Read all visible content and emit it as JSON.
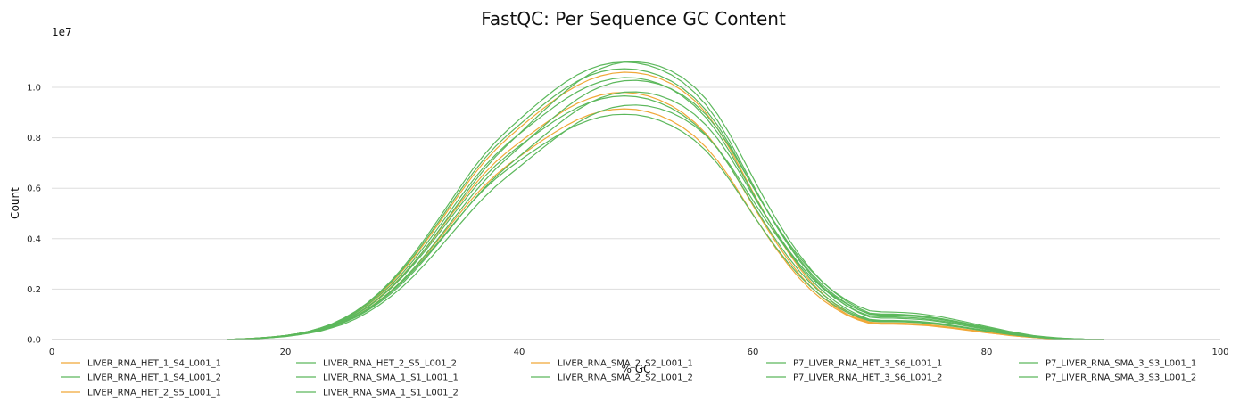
{
  "chart_data": {
    "type": "line",
    "title": "FastQC: Per Sequence GC Content",
    "xlabel": "% GC",
    "ylabel": "Count",
    "y_multiplier": "1e7",
    "xlim": [
      0,
      100
    ],
    "ylim": [
      0,
      1.2
    ],
    "x_ticks": [
      "0",
      "20",
      "40",
      "60",
      "80",
      "100"
    ],
    "y_ticks": [
      "0.0",
      "0.2",
      "0.4",
      "0.6",
      "0.8",
      "1.0"
    ],
    "grid": "horizontal",
    "legend_position": "bottom",
    "colors": {
      "warn": "#f0a838",
      "pass": "#5cb85c"
    },
    "x": [
      15,
      16,
      17,
      18,
      19,
      20,
      21,
      22,
      23,
      24,
      25,
      26,
      27,
      28,
      29,
      30,
      31,
      32,
      33,
      34,
      35,
      36,
      37,
      38,
      39,
      40,
      41,
      42,
      43,
      44,
      45,
      46,
      47,
      48,
      49,
      50,
      51,
      52,
      53,
      54,
      55,
      56,
      57,
      58,
      59,
      60,
      61,
      62,
      63,
      64,
      65,
      66,
      67,
      68,
      69,
      70,
      71,
      72,
      73,
      74,
      75,
      76,
      77,
      78,
      79,
      80,
      81,
      82,
      83,
      84,
      85,
      86,
      87,
      88,
      89,
      90
    ],
    "series": [
      {
        "name": "LIVER_RNA_HET_1_S4_L001_1",
        "status": "warn",
        "values": [
          0,
          0.002,
          0.004,
          0.007,
          0.011,
          0.016,
          0.023,
          0.032,
          0.045,
          0.061,
          0.082,
          0.108,
          0.14,
          0.178,
          0.222,
          0.272,
          0.327,
          0.388,
          0.452,
          0.518,
          0.584,
          0.647,
          0.704,
          0.754,
          0.798,
          0.838,
          0.877,
          0.914,
          0.949,
          0.981,
          1.008,
          1.03,
          1.046,
          1.056,
          1.06,
          1.058,
          1.05,
          1.036,
          1.015,
          0.986,
          0.948,
          0.898,
          0.835,
          0.758,
          0.672,
          0.585,
          0.501,
          0.421,
          0.347,
          0.282,
          0.227,
          0.18,
          0.141,
          0.11,
          0.086,
          0.069,
          0.066,
          0.066,
          0.065,
          0.063,
          0.059,
          0.054,
          0.048,
          0.042,
          0.036,
          0.03,
          0.024,
          0.018,
          0.013,
          0.009,
          0.006,
          0.004,
          0.002,
          0.001,
          0,
          0
        ]
      },
      {
        "name": "LIVER_RNA_HET_1_S4_L001_2",
        "status": "pass",
        "values": [
          0,
          0.002,
          0.004,
          0.007,
          0.011,
          0.016,
          0.023,
          0.032,
          0.044,
          0.06,
          0.08,
          0.105,
          0.136,
          0.173,
          0.215,
          0.263,
          0.317,
          0.376,
          0.439,
          0.503,
          0.567,
          0.629,
          0.685,
          0.734,
          0.777,
          0.815,
          0.852,
          0.888,
          0.923,
          0.955,
          0.983,
          1.006,
          1.023,
          1.034,
          1.039,
          1.037,
          1.029,
          1.014,
          0.993,
          0.964,
          0.927,
          0.879,
          0.819,
          0.746,
          0.664,
          0.581,
          0.5,
          0.423,
          0.352,
          0.289,
          0.236,
          0.191,
          0.153,
          0.122,
          0.098,
          0.08,
          0.076,
          0.076,
          0.075,
          0.073,
          0.069,
          0.064,
          0.057,
          0.05,
          0.043,
          0.036,
          0.029,
          0.022,
          0.016,
          0.011,
          0.007,
          0.005,
          0.003,
          0.001,
          0,
          0
        ]
      },
      {
        "name": "LIVER_RNA_HET_2_S5_L001_1",
        "status": "warn",
        "values": [
          0,
          0.002,
          0.004,
          0.007,
          0.01,
          0.015,
          0.021,
          0.03,
          0.042,
          0.057,
          0.076,
          0.1,
          0.13,
          0.166,
          0.207,
          0.254,
          0.306,
          0.362,
          0.422,
          0.484,
          0.545,
          0.604,
          0.658,
          0.705,
          0.745,
          0.781,
          0.816,
          0.85,
          0.882,
          0.912,
          0.937,
          0.956,
          0.97,
          0.978,
          0.98,
          0.976,
          0.966,
          0.95,
          0.928,
          0.899,
          0.862,
          0.816,
          0.758,
          0.689,
          0.611,
          0.532,
          0.456,
          0.384,
          0.317,
          0.258,
          0.207,
          0.165,
          0.13,
          0.102,
          0.081,
          0.066,
          0.063,
          0.063,
          0.062,
          0.06,
          0.057,
          0.052,
          0.046,
          0.04,
          0.034,
          0.028,
          0.022,
          0.017,
          0.012,
          0.008,
          0.005,
          0.003,
          0.002,
          0.001,
          0,
          0
        ]
      },
      {
        "name": "LIVER_RNA_HET_2_S5_L001_2",
        "status": "pass",
        "values": [
          0,
          0.002,
          0.004,
          0.007,
          0.01,
          0.015,
          0.021,
          0.03,
          0.041,
          0.056,
          0.075,
          0.098,
          0.127,
          0.162,
          0.202,
          0.248,
          0.299,
          0.354,
          0.413,
          0.474,
          0.534,
          0.592,
          0.645,
          0.691,
          0.731,
          0.767,
          0.801,
          0.834,
          0.866,
          0.895,
          0.92,
          0.94,
          0.954,
          0.963,
          0.966,
          0.963,
          0.954,
          0.939,
          0.918,
          0.89,
          0.855,
          0.811,
          0.755,
          0.688,
          0.613,
          0.537,
          0.463,
          0.393,
          0.328,
          0.27,
          0.22,
          0.178,
          0.143,
          0.115,
          0.093,
          0.077,
          0.073,
          0.073,
          0.072,
          0.07,
          0.066,
          0.061,
          0.055,
          0.048,
          0.041,
          0.034,
          0.027,
          0.021,
          0.015,
          0.01,
          0.007,
          0.004,
          0.002,
          0.001,
          0,
          0
        ]
      },
      {
        "name": "LIVER_RNA_SMA_1_S1_L001_1",
        "status": "pass",
        "values": [
          0,
          0.002,
          0.004,
          0.007,
          0.011,
          0.016,
          0.023,
          0.033,
          0.046,
          0.063,
          0.085,
          0.112,
          0.145,
          0.185,
          0.231,
          0.283,
          0.341,
          0.404,
          0.471,
          0.54,
          0.608,
          0.674,
          0.733,
          0.785,
          0.83,
          0.872,
          0.913,
          0.952,
          0.989,
          1.022,
          1.05,
          1.072,
          1.088,
          1.097,
          1.1,
          1.097,
          1.088,
          1.072,
          1.05,
          1.02,
          0.98,
          0.93,
          0.866,
          0.788,
          0.701,
          0.614,
          0.53,
          0.451,
          0.377,
          0.311,
          0.255,
          0.207,
          0.167,
          0.134,
          0.108,
          0.089,
          0.085,
          0.085,
          0.083,
          0.081,
          0.077,
          0.071,
          0.064,
          0.056,
          0.048,
          0.04,
          0.032,
          0.024,
          0.018,
          0.012,
          0.008,
          0.005,
          0.003,
          0.001,
          0,
          0
        ]
      },
      {
        "name": "LIVER_RNA_SMA_1_S1_L001_2",
        "status": "pass",
        "values": [
          0,
          0.002,
          0.004,
          0.007,
          0.011,
          0.016,
          0.023,
          0.033,
          0.046,
          0.062,
          0.083,
          0.11,
          0.142,
          0.181,
          0.226,
          0.277,
          0.333,
          0.395,
          0.46,
          0.528,
          0.594,
          0.658,
          0.716,
          0.767,
          0.811,
          0.851,
          0.891,
          0.929,
          0.965,
          0.997,
          1.025,
          1.047,
          1.062,
          1.071,
          1.074,
          1.071,
          1.062,
          1.047,
          1.025,
          0.996,
          0.958,
          0.909,
          0.848,
          0.773,
          0.69,
          0.606,
          0.526,
          0.45,
          0.38,
          0.317,
          0.262,
          0.215,
          0.176,
          0.144,
          0.119,
          0.1,
          0.096,
          0.095,
          0.094,
          0.091,
          0.086,
          0.08,
          0.072,
          0.063,
          0.054,
          0.045,
          0.036,
          0.028,
          0.021,
          0.014,
          0.009,
          0.006,
          0.003,
          0.002,
          0,
          0
        ]
      },
      {
        "name": "LIVER_RNA_SMA_2_S2_L001_1",
        "status": "warn",
        "values": [
          0,
          0.002,
          0.004,
          0.006,
          0.01,
          0.014,
          0.02,
          0.028,
          0.039,
          0.053,
          0.071,
          0.093,
          0.121,
          0.154,
          0.192,
          0.235,
          0.283,
          0.335,
          0.391,
          0.448,
          0.505,
          0.56,
          0.609,
          0.653,
          0.691,
          0.725,
          0.758,
          0.79,
          0.82,
          0.848,
          0.872,
          0.891,
          0.904,
          0.912,
          0.915,
          0.912,
          0.903,
          0.889,
          0.868,
          0.841,
          0.806,
          0.762,
          0.708,
          0.643,
          0.57,
          0.497,
          0.426,
          0.359,
          0.297,
          0.242,
          0.195,
          0.156,
          0.124,
          0.098,
          0.078,
          0.064,
          0.061,
          0.061,
          0.06,
          0.058,
          0.055,
          0.05,
          0.045,
          0.039,
          0.033,
          0.027,
          0.022,
          0.016,
          0.012,
          0.008,
          0.005,
          0.003,
          0.002,
          0.001,
          0,
          0
        ]
      },
      {
        "name": "LIVER_RNA_SMA_2_S2_L001_2",
        "status": "pass",
        "values": [
          0,
          0.002,
          0.003,
          0.006,
          0.009,
          0.014,
          0.02,
          0.028,
          0.038,
          0.052,
          0.069,
          0.091,
          0.118,
          0.15,
          0.187,
          0.23,
          0.277,
          0.328,
          0.382,
          0.438,
          0.493,
          0.547,
          0.596,
          0.638,
          0.675,
          0.709,
          0.741,
          0.772,
          0.801,
          0.829,
          0.852,
          0.87,
          0.883,
          0.891,
          0.893,
          0.891,
          0.883,
          0.869,
          0.849,
          0.823,
          0.79,
          0.748,
          0.696,
          0.634,
          0.565,
          0.495,
          0.428,
          0.364,
          0.305,
          0.252,
          0.206,
          0.167,
          0.135,
          0.109,
          0.089,
          0.074,
          0.071,
          0.071,
          0.07,
          0.068,
          0.064,
          0.059,
          0.053,
          0.047,
          0.04,
          0.033,
          0.027,
          0.02,
          0.015,
          0.01,
          0.006,
          0.004,
          0.002,
          0.001,
          0,
          0
        ]
      },
      {
        "name": "P7_LIVER_RNA_HET_3_S6_L001_1",
        "status": "pass",
        "values": [
          0,
          0.002,
          0.003,
          0.006,
          0.009,
          0.013,
          0.019,
          0.027,
          0.037,
          0.05,
          0.067,
          0.088,
          0.114,
          0.145,
          0.181,
          0.223,
          0.27,
          0.322,
          0.377,
          0.434,
          0.492,
          0.548,
          0.6,
          0.646,
          0.687,
          0.726,
          0.765,
          0.804,
          0.842,
          0.878,
          0.911,
          0.938,
          0.959,
          0.973,
          0.981,
          0.982,
          0.978,
          0.967,
          0.95,
          0.926,
          0.893,
          0.85,
          0.795,
          0.728,
          0.651,
          0.573,
          0.497,
          0.425,
          0.358,
          0.298,
          0.246,
          0.202,
          0.165,
          0.135,
          0.111,
          0.094,
          0.09,
          0.09,
          0.088,
          0.086,
          0.081,
          0.075,
          0.068,
          0.06,
          0.051,
          0.043,
          0.035,
          0.027,
          0.02,
          0.014,
          0.009,
          0.006,
          0.003,
          0.002,
          0,
          0
        ]
      },
      {
        "name": "P7_LIVER_RNA_HET_3_S6_L001_2",
        "status": "pass",
        "values": [
          0,
          0.002,
          0.003,
          0.005,
          0.008,
          0.012,
          0.018,
          0.025,
          0.034,
          0.047,
          0.062,
          0.082,
          0.107,
          0.136,
          0.17,
          0.209,
          0.253,
          0.302,
          0.354,
          0.408,
          0.462,
          0.515,
          0.564,
          0.608,
          0.647,
          0.684,
          0.722,
          0.759,
          0.795,
          0.829,
          0.86,
          0.886,
          0.906,
          0.92,
          0.928,
          0.93,
          0.926,
          0.916,
          0.9,
          0.877,
          0.847,
          0.808,
          0.757,
          0.695,
          0.624,
          0.552,
          0.481,
          0.415,
          0.352,
          0.296,
          0.247,
          0.206,
          0.171,
          0.142,
          0.119,
          0.102,
          0.098,
          0.098,
          0.096,
          0.093,
          0.088,
          0.082,
          0.074,
          0.065,
          0.056,
          0.047,
          0.038,
          0.03,
          0.022,
          0.015,
          0.01,
          0.006,
          0.004,
          0.002,
          0,
          0
        ]
      },
      {
        "name": "P7_LIVER_RNA_SMA_3_S3_L001_1",
        "status": "pass",
        "values": [
          0,
          0.002,
          0.004,
          0.007,
          0.01,
          0.015,
          0.022,
          0.03,
          0.042,
          0.057,
          0.076,
          0.1,
          0.129,
          0.164,
          0.205,
          0.252,
          0.305,
          0.363,
          0.425,
          0.489,
          0.553,
          0.616,
          0.674,
          0.726,
          0.772,
          0.816,
          0.86,
          0.904,
          0.946,
          0.986,
          1.022,
          1.052,
          1.075,
          1.091,
          1.1,
          1.101,
          1.096,
          1.084,
          1.065,
          1.038,
          1.001,
          0.953,
          0.891,
          0.816,
          0.73,
          0.642,
          0.557,
          0.477,
          0.402,
          0.335,
          0.276,
          0.227,
          0.186,
          0.152,
          0.125,
          0.105,
          0.101,
          0.101,
          0.099,
          0.096,
          0.091,
          0.084,
          0.076,
          0.067,
          0.057,
          0.048,
          0.039,
          0.03,
          0.022,
          0.015,
          0.01,
          0.006,
          0.004,
          0.002,
          0,
          0
        ]
      },
      {
        "name": "P7_LIVER_RNA_SMA_3_S3_L001_2",
        "status": "pass",
        "values": [
          0,
          0.002,
          0.003,
          0.006,
          0.009,
          0.014,
          0.02,
          0.028,
          0.039,
          0.053,
          0.071,
          0.093,
          0.12,
          0.153,
          0.191,
          0.235,
          0.284,
          0.338,
          0.396,
          0.456,
          0.516,
          0.574,
          0.628,
          0.677,
          0.72,
          0.761,
          0.802,
          0.843,
          0.883,
          0.92,
          0.954,
          0.982,
          1.003,
          1.018,
          1.026,
          1.028,
          1.023,
          1.012,
          0.994,
          0.969,
          0.935,
          0.891,
          0.834,
          0.765,
          0.686,
          0.606,
          0.528,
          0.455,
          0.386,
          0.325,
          0.272,
          0.226,
          0.188,
          0.157,
          0.132,
          0.114,
          0.11,
          0.109,
          0.107,
          0.104,
          0.098,
          0.091,
          0.082,
          0.072,
          0.062,
          0.052,
          0.042,
          0.032,
          0.024,
          0.016,
          0.011,
          0.007,
          0.004,
          0.002,
          0,
          0
        ]
      }
    ]
  }
}
